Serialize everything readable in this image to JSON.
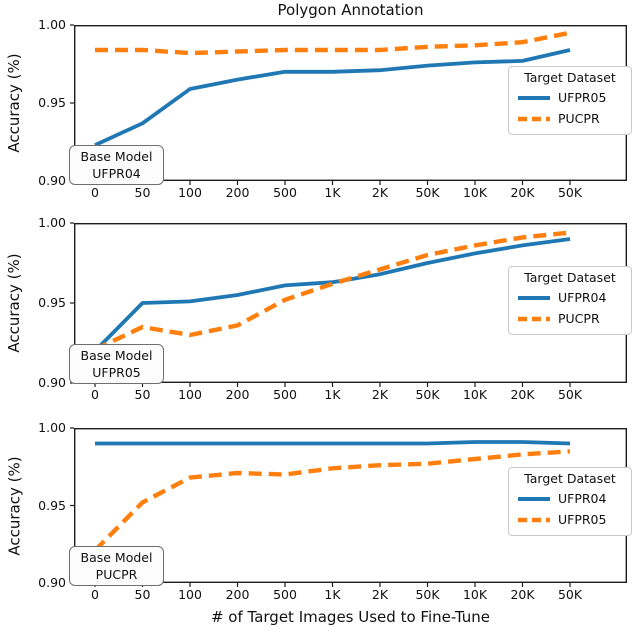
{
  "title": "Polygon Annotation",
  "xlabel": "# of Target Images Used to Fine-Tune",
  "ylabel": "Accuracy (%)",
  "legend_title": "Target Dataset",
  "colors": {
    "blue": "#1f77b4",
    "orange": "#ff7f0e",
    "axis": "#1c1c1c"
  },
  "x_tick_labels": [
    "0",
    "50",
    "100",
    "200",
    "500",
    "1K",
    "2K",
    "50K",
    "10K",
    "20K",
    "50K"
  ],
  "y_tick_labels": [
    "1.00",
    "0.95",
    "0.90"
  ],
  "chart_data": [
    {
      "type": "line",
      "base_model_label": "Base Model",
      "base_model_name": "UFPR04",
      "categories": [
        "0",
        "50",
        "100",
        "200",
        "500",
        "1K",
        "2K",
        "50K",
        "10K",
        "20K",
        "50K"
      ],
      "ylim": [
        0.9,
        1.0
      ],
      "grid": false,
      "legend_position": "center right",
      "series": [
        {
          "name": "UFPR05",
          "style": "solid",
          "color": "#1f77b4",
          "values": [
            0.923,
            0.937,
            0.959,
            0.965,
            0.97,
            0.97,
            0.971,
            0.974,
            0.976,
            0.977,
            0.984
          ]
        },
        {
          "name": "PUCPR",
          "style": "dashed",
          "color": "#ff7f0e",
          "values": [
            0.984,
            0.984,
            0.982,
            0.983,
            0.984,
            0.984,
            0.984,
            0.986,
            0.987,
            0.989,
            0.995
          ]
        }
      ]
    },
    {
      "type": "line",
      "base_model_label": "Base Model",
      "base_model_name": "UFPR05",
      "categories": [
        "0",
        "50",
        "100",
        "200",
        "500",
        "1K",
        "2K",
        "50K",
        "10K",
        "20K",
        "50K"
      ],
      "ylim": [
        0.9,
        1.0
      ],
      "grid": false,
      "legend_position": "center right",
      "series": [
        {
          "name": "UFPR04",
          "style": "solid",
          "color": "#1f77b4",
          "values": [
            0.92,
            0.95,
            0.951,
            0.955,
            0.961,
            0.963,
            0.968,
            0.975,
            0.981,
            0.986,
            0.99
          ]
        },
        {
          "name": "PUCPR",
          "style": "dashed",
          "color": "#ff7f0e",
          "values": [
            0.921,
            0.935,
            0.93,
            0.936,
            0.952,
            0.962,
            0.971,
            0.98,
            0.986,
            0.991,
            0.994
          ]
        }
      ]
    },
    {
      "type": "line",
      "base_model_label": "Base Model",
      "base_model_name": "PUCPR",
      "categories": [
        "0",
        "50",
        "100",
        "200",
        "500",
        "1K",
        "2K",
        "50K",
        "10K",
        "20K",
        "50K"
      ],
      "ylim": [
        0.9,
        1.0
      ],
      "grid": false,
      "legend_position": "center right",
      "series": [
        {
          "name": "UFPR04",
          "style": "solid",
          "color": "#1f77b4",
          "values": [
            0.99,
            0.99,
            0.99,
            0.99,
            0.99,
            0.99,
            0.99,
            0.99,
            0.991,
            0.991,
            0.99
          ]
        },
        {
          "name": "UFPR05",
          "style": "dashed",
          "color": "#ff7f0e",
          "values": [
            0.921,
            0.952,
            0.968,
            0.971,
            0.97,
            0.974,
            0.976,
            0.977,
            0.98,
            0.983,
            0.985
          ]
        }
      ]
    }
  ]
}
